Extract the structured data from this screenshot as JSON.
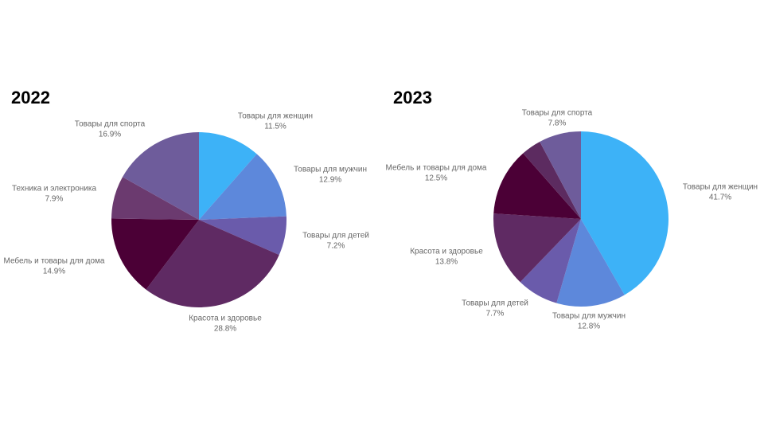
{
  "chart_data": [
    {
      "type": "pie",
      "title": "2022",
      "categories": [
        "Товары для женщин",
        "Товары для мужчин",
        "Товары для детей",
        "Красота и здоровье",
        "Мебель и товары для дома",
        "Техника и электроника",
        "Товары для спорта"
      ],
      "values": [
        11.5,
        12.9,
        7.2,
        28.8,
        14.9,
        7.9,
        16.9
      ],
      "value_labels": [
        "11.5%",
        "12.9%",
        "7.2%",
        "28.8%",
        "14.9%",
        "7.9%",
        "16.9%"
      ],
      "colors": [
        "#3db2f7",
        "#5d88db",
        "#6a5bab",
        "#5f2a63",
        "#4b0036",
        "#6b3a6f",
        "#6e5c9b"
      ]
    },
    {
      "type": "pie",
      "title": "2023",
      "categories": [
        "Товары для женщин",
        "Товары для мужчин",
        "Товары для детей",
        "Красота и здоровье",
        "Мебель и товары для дома",
        null,
        "Товары для спорта"
      ],
      "values": [
        41.7,
        12.8,
        7.7,
        13.8,
        12.5,
        3.7,
        7.8
      ],
      "value_labels": [
        "41.7%",
        "12.8%",
        "7.7%",
        "13.8%",
        "12.5%",
        null,
        "7.8%"
      ],
      "colors": [
        "#3db2f7",
        "#5d88db",
        "#6a5bab",
        "#5f2a63",
        "#4b0036",
        "#5c2b60",
        "#6e5c9b"
      ]
    }
  ]
}
